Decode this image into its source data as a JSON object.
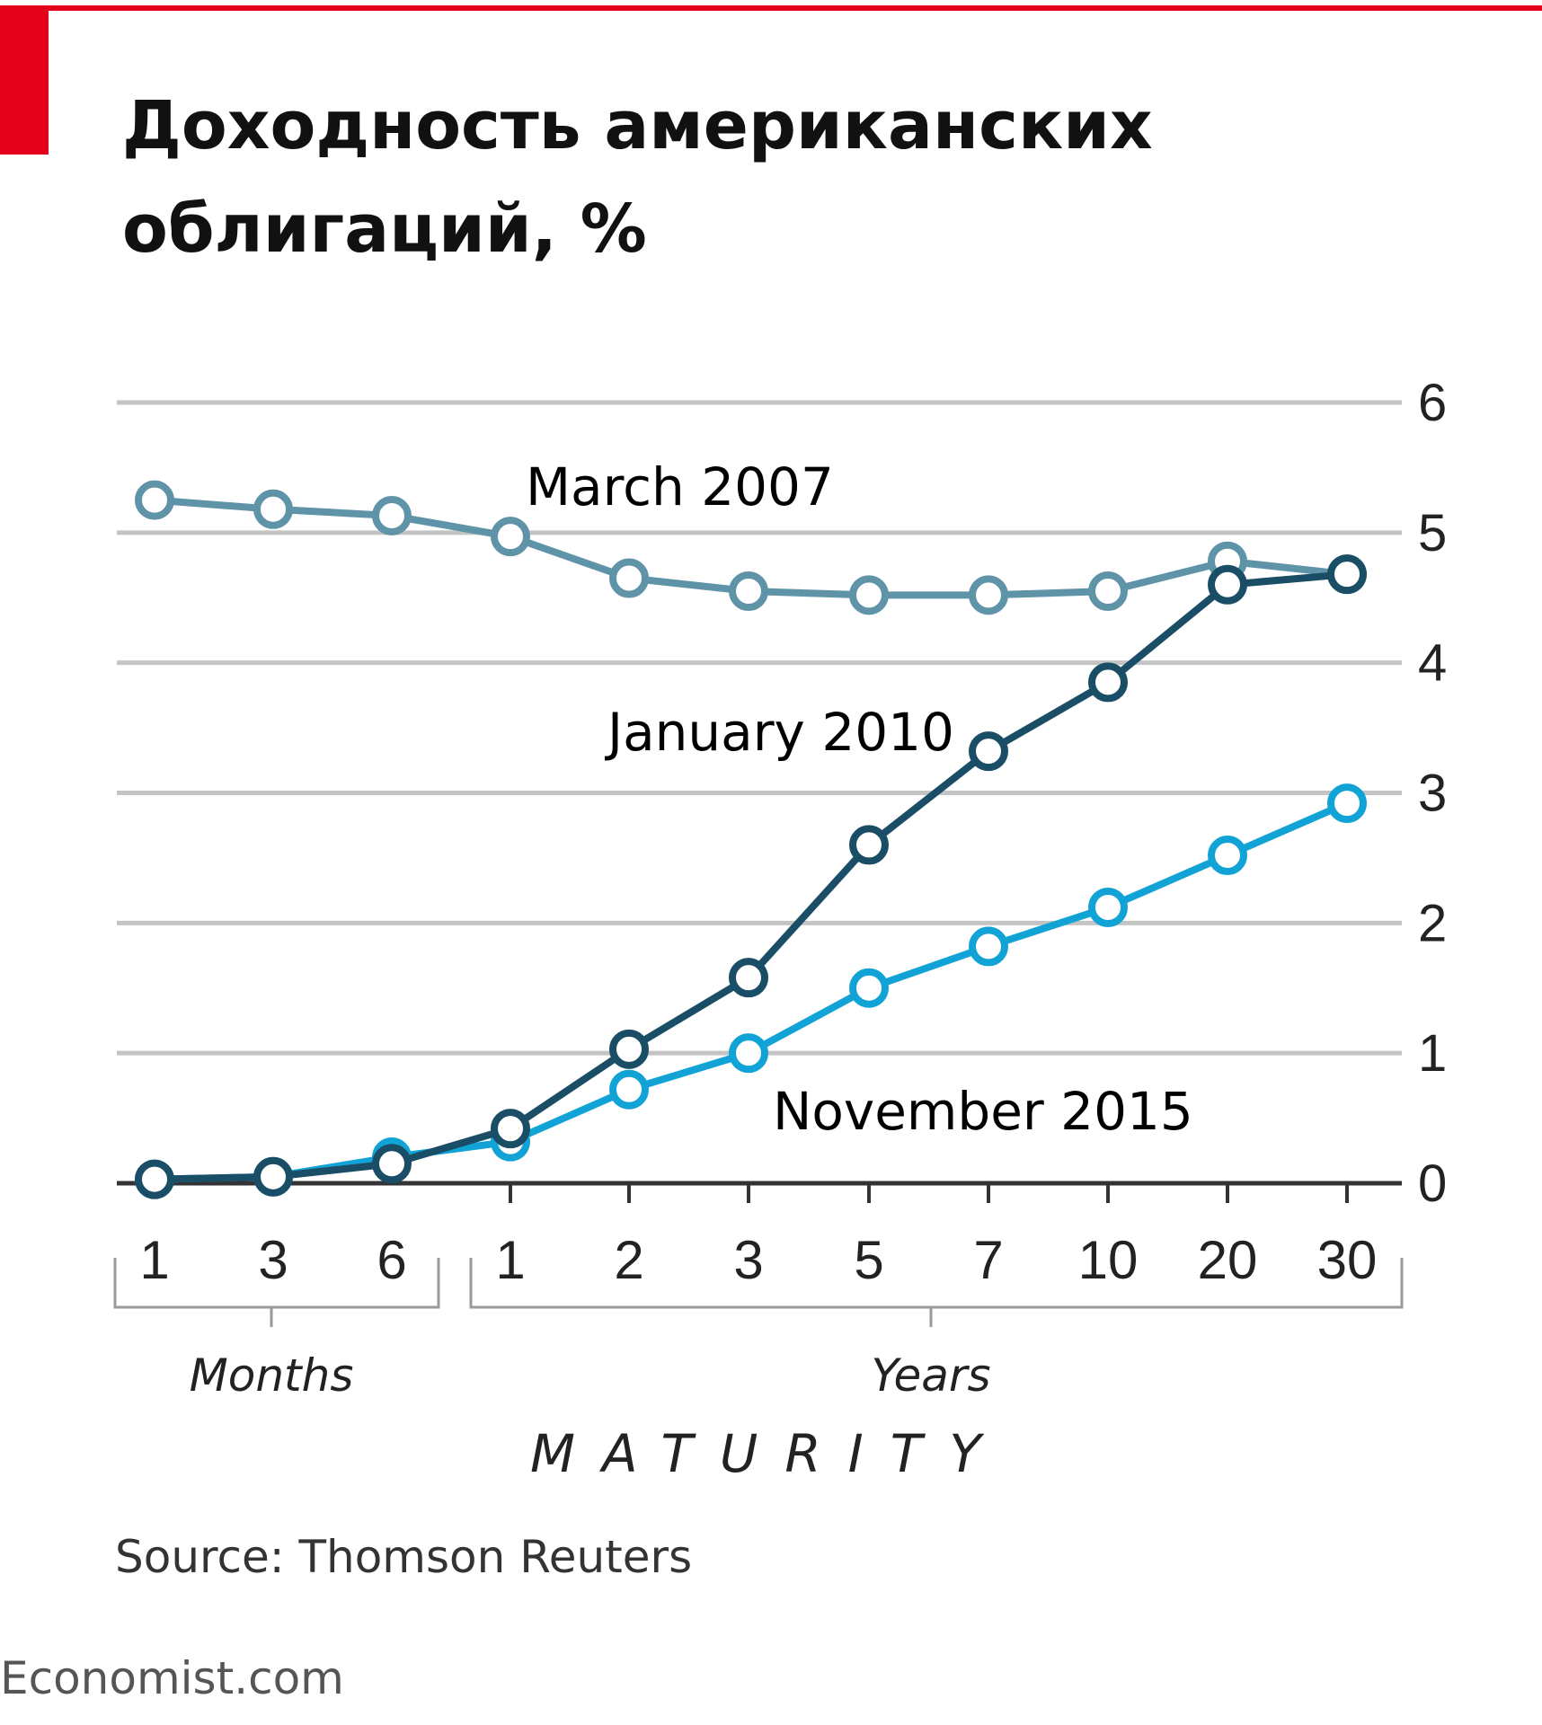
{
  "title_line1": "Доходность американских",
  "title_line2": "облигаций, %",
  "source": "Source: Thomson Reuters",
  "credit": "Economist.com",
  "colors": {
    "accent": "#e2001a",
    "march_2007": "#5e93a8",
    "january_2010": "#1a4d66",
    "november_2015": "#12a3d6",
    "grid": "#c4c4c4",
    "axis": "#333333"
  },
  "chart_data": {
    "type": "line",
    "title": "Доходность американских облигаций, %",
    "xlabel": "MATURITY",
    "ylabel": "",
    "categories": [
      "1",
      "3",
      "6",
      "1",
      "2",
      "3",
      "5",
      "7",
      "10",
      "20",
      "30"
    ],
    "category_groups": [
      {
        "label": "Months",
        "categories": [
          "1",
          "3",
          "6"
        ]
      },
      {
        "label": "Years",
        "categories": [
          "1",
          "2",
          "3",
          "5",
          "7",
          "10",
          "20",
          "30"
        ]
      }
    ],
    "ylim": [
      0,
      6
    ],
    "yticks": [
      0,
      1,
      2,
      3,
      4,
      5,
      6
    ],
    "y_axis_side": "right",
    "grid": true,
    "legend": "inline labels",
    "series": [
      {
        "name": "March 2007",
        "color": "#5e93a8",
        "values": [
          5.25,
          5.18,
          5.13,
          4.97,
          4.65,
          4.55,
          4.52,
          4.52,
          4.55,
          4.78,
          4.68
        ]
      },
      {
        "name": "January 2010",
        "color": "#1a4d66",
        "values": [
          0.03,
          0.05,
          0.15,
          0.42,
          1.03,
          1.58,
          2.6,
          3.32,
          3.85,
          4.6,
          4.68
        ]
      },
      {
        "name": "November 2015",
        "color": "#12a3d6",
        "values": [
          0.03,
          0.05,
          0.2,
          0.32,
          0.72,
          1.0,
          1.5,
          1.82,
          2.12,
          2.52,
          2.92
        ]
      }
    ]
  }
}
